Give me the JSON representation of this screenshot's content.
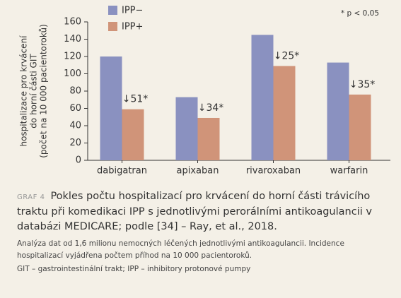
{
  "chart_data": {
    "type": "grouped-bar",
    "categories": [
      "dabigatran",
      "apixaban",
      "rivaroxaban",
      "warfarin"
    ],
    "series": [
      {
        "name": "IPP−",
        "color": "#8a91c0",
        "values": [
          120,
          73,
          145,
          113
        ]
      },
      {
        "name": "IPP+",
        "color": "#d09479",
        "values": [
          59,
          49,
          109,
          76
        ]
      }
    ],
    "ylim": [
      0,
      160
    ],
    "yticks": [
      0,
      20,
      40,
      60,
      80,
      100,
      120,
      140,
      160
    ],
    "ylabel": [
      "hospitalizace pro krvácení",
      "do horní části GIT",
      "(počet na 10 000 pacientoroků)"
    ],
    "annotations": [
      "↓51*",
      "↓34*",
      "↓25*",
      "↓35*"
    ],
    "note": "* p < 0,05"
  },
  "caption": {
    "label": "GRAF 4",
    "title": "Pokles počtu hospitalizací pro krvácení do horní části trávicího traktu při komedikaci IPP s jednotlivými perorálními antikoagulancii v databázi MEDICARE; podle [34] – Ray, et al., 2018.",
    "description": "Analýza dat od 1,6 milionu nemocných léčených jednotlivými antikoagulancii. Incidence hospitalizací vyjádřena počtem příhod na 10 000 pacientoroků.",
    "abbreviations": "GIT – gastrointestinální trakt; IPP – inhibitory protonové pumpy"
  }
}
